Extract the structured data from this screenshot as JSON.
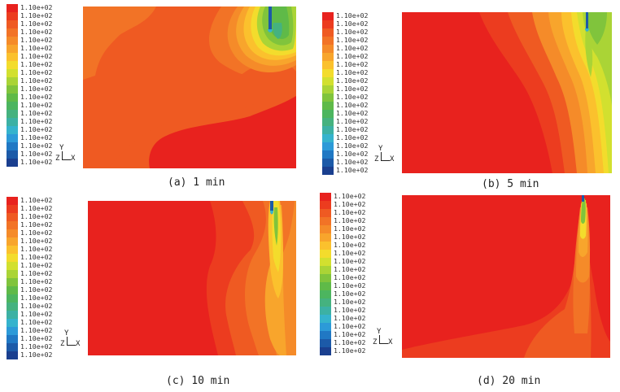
{
  "chart_data": [
    {
      "type": "heatmap",
      "caption": "(a)  1 min",
      "colorbar_labels": [
        "1.10e+02",
        "1.10e+02",
        "1.10e+02",
        "1.10e+02",
        "1.10e+02",
        "1.10e+02",
        "1.10e+02",
        "1.10e+02",
        "1.10e+02",
        "1.10e+02",
        "1.10e+02",
        "1.10e+02",
        "1.10e+02",
        "1.10e+02",
        "1.10e+02",
        "1.10e+02",
        "1.10e+02",
        "1.10e+02",
        "1.10e+02",
        "1.10e+02"
      ],
      "axis_labels": {
        "y": "Y",
        "z": "Z",
        "x": "X"
      }
    },
    {
      "type": "heatmap",
      "caption": "(b)  5 min",
      "colorbar_labels": [
        "1.10e+02",
        "1.10e+02",
        "1.10e+02",
        "1.10e+02",
        "1.10e+02",
        "1.10e+02",
        "1.10e+02",
        "1.10e+02",
        "1.10e+02",
        "1.10e+02",
        "1.10e+02",
        "1.10e+02",
        "1.10e+02",
        "1.10e+02",
        "1.10e+02",
        "1.10e+02",
        "1.10e+02",
        "1.10e+02",
        "1.10e+02",
        "1.10e+02"
      ],
      "axis_labels": {
        "y": "Y",
        "z": "Z",
        "x": "X"
      }
    },
    {
      "type": "heatmap",
      "caption": "(c)  10 min",
      "colorbar_labels": [
        "1.10e+02",
        "1.10e+02",
        "1.10e+02",
        "1.10e+02",
        "1.10e+02",
        "1.10e+02",
        "1.10e+02",
        "1.10e+02",
        "1.10e+02",
        "1.10e+02",
        "1.10e+02",
        "1.10e+02",
        "1.10e+02",
        "1.10e+02",
        "1.10e+02",
        "1.10e+02",
        "1.10e+02",
        "1.10e+02",
        "1.10e+02",
        "1.10e+02"
      ],
      "axis_labels": {
        "y": "Y",
        "z": "Z",
        "x": "X"
      }
    },
    {
      "type": "heatmap",
      "caption": "(d)  20 min",
      "colorbar_labels": [
        "1.10e+02",
        "1.10e+02",
        "1.10e+02",
        "1.10e+02",
        "1.10e+02",
        "1.10e+02",
        "1.10e+02",
        "1.10e+02",
        "1.10e+02",
        "1.10e+02",
        "1.10e+02",
        "1.10e+02",
        "1.10e+02",
        "1.10e+02",
        "1.10e+02",
        "1.10e+02",
        "1.10e+02",
        "1.10e+02",
        "1.10e+02",
        "1.10e+02"
      ],
      "axis_labels": {
        "y": "Y",
        "z": "Z",
        "x": "X"
      }
    }
  ],
  "colorbar_colors": [
    "#e8221e",
    "#ec3c1f",
    "#ef5a22",
    "#f27326",
    "#f58b29",
    "#f8a52c",
    "#fbc12d",
    "#f3dc2c",
    "#d2e02f",
    "#aad436",
    "#80c43c",
    "#5fba48",
    "#4cb55f",
    "#45b27f",
    "#3cb1a4",
    "#35b3cd",
    "#2c9ad8",
    "#2078c4",
    "#1c5aa8",
    "#1a3f8f"
  ]
}
